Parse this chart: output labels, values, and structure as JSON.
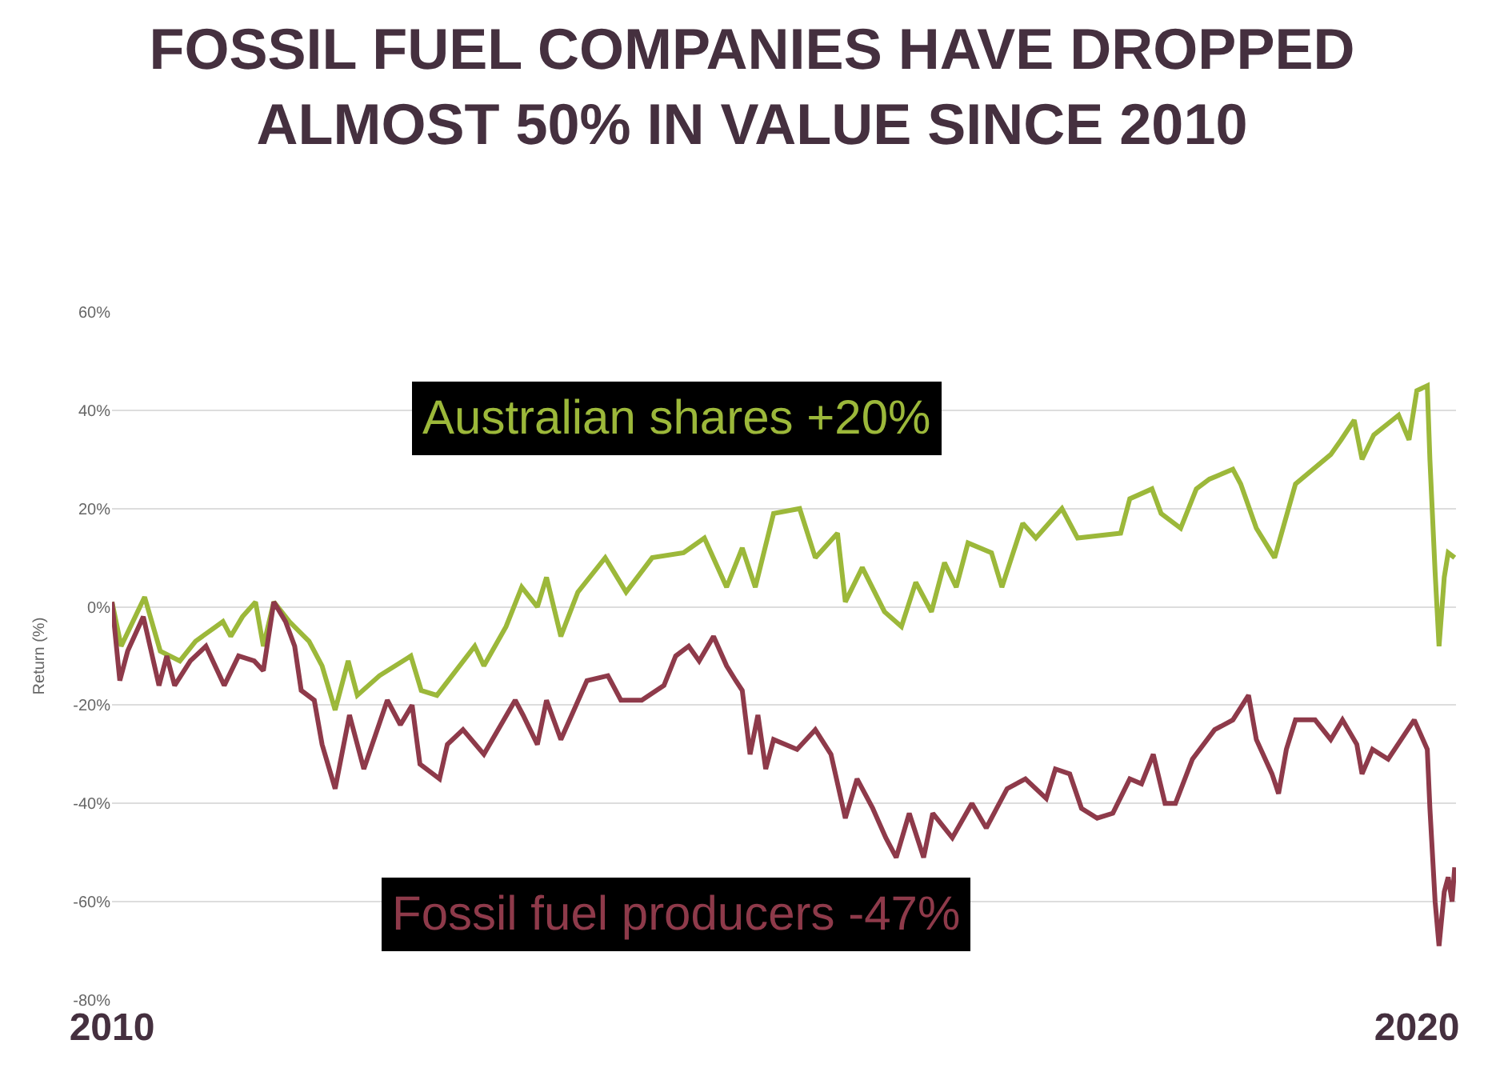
{
  "chart_data": {
    "type": "line",
    "title": "FOSSIL FUEL COMPANIES HAVE DROPPED\nALMOST 50% IN VALUE SINCE 2010",
    "ylabel": "Return (%)",
    "xlim": [
      2010,
      2020.3
    ],
    "xticks": [
      2010,
      2020
    ],
    "ylim": [
      -80,
      60
    ],
    "yticks": [
      {
        "value": 60,
        "label": "60%"
      },
      {
        "value": 40,
        "label": "40%"
      },
      {
        "value": 20,
        "label": "20%"
      },
      {
        "value": 0,
        "label": "0%"
      },
      {
        "value": -20,
        "label": "-20%"
      },
      {
        "value": -40,
        "label": "-40%"
      },
      {
        "value": -60,
        "label": "-60%"
      },
      {
        "value": -80,
        "label": "-80%"
      }
    ],
    "grid": "y",
    "legend": false,
    "series": [
      {
        "name": "Australian shares +20%",
        "color": "#9cb83a",
        "x": [
          2010,
          2010.07,
          2010.25,
          2010.37,
          2010.52,
          2010.64,
          2010.85,
          2010.91,
          2011.0,
          2011.1,
          2011.16,
          2011.24,
          2011.36,
          2011.51,
          2011.61,
          2011.71,
          2011.81,
          2011.88,
          2012.05,
          2012.29,
          2012.37,
          2012.49,
          2012.78,
          2012.85,
          2013.02,
          2013.14,
          2013.26,
          2013.33,
          2013.44,
          2013.57,
          2013.78,
          2013.94,
          2014.14,
          2014.38,
          2014.54,
          2014.71,
          2014.83,
          2014.93,
          2015.07,
          2015.27,
          2015.39,
          2015.56,
          2015.62,
          2015.75,
          2015.92,
          2016.05,
          2016.16,
          2016.28,
          2016.38,
          2016.47,
          2016.56,
          2016.74,
          2016.82,
          2016.98,
          2017.08,
          2017.28,
          2017.4,
          2017.73,
          2017.8,
          2017.97,
          2018.04,
          2018.19,
          2018.31,
          2018.41,
          2018.59,
          2018.65,
          2018.77,
          2018.91,
          2019.07,
          2019.34,
          2019.42,
          2019.52,
          2019.58,
          2019.67,
          2019.86,
          2019.94,
          2020.0,
          2020.08,
          2020.1,
          2020.14,
          2020.17,
          2020.21,
          2020.24,
          2020.29
        ],
        "values": [
          1,
          -8,
          2,
          -9,
          -11,
          -7,
          -3,
          -6,
          -2,
          1,
          -8,
          1,
          -3,
          -7,
          -12,
          -21,
          -11,
          -18,
          -14,
          -10,
          -17,
          -18,
          -8,
          -12,
          -4,
          4,
          0,
          6,
          -6,
          3,
          10,
          3,
          10,
          11,
          14,
          4,
          12,
          4,
          19,
          20,
          10,
          15,
          1,
          8,
          -1,
          -4,
          5,
          -1,
          9,
          4,
          13,
          11,
          4,
          17,
          14,
          20,
          14,
          15,
          22,
          24,
          19,
          16,
          24,
          26,
          28,
          25,
          16,
          10,
          25,
          31,
          34,
          38,
          30,
          35,
          39,
          34,
          44,
          45,
          30,
          7,
          -8,
          6,
          11,
          10
        ]
      },
      {
        "name": "Fossil fuel producers -47%",
        "color": "#8e3a4a",
        "x": [
          2010,
          2010.06,
          2010.12,
          2010.24,
          2010.36,
          2010.42,
          2010.48,
          2010.6,
          2010.72,
          2010.86,
          2010.97,
          2011.09,
          2011.16,
          2011.24,
          2011.33,
          2011.4,
          2011.45,
          2011.55,
          2011.61,
          2011.71,
          2011.82,
          2011.93,
          2012.11,
          2012.21,
          2012.3,
          2012.36,
          2012.51,
          2012.57,
          2012.69,
          2012.85,
          2013.09,
          2013.15,
          2013.26,
          2013.33,
          2013.44,
          2013.64,
          2013.8,
          2013.9,
          2014.06,
          2014.23,
          2014.32,
          2014.42,
          2014.5,
          2014.61,
          2014.71,
          2014.78,
          2014.83,
          2014.89,
          2014.95,
          2015.01,
          2015.07,
          2015.25,
          2015.39,
          2015.51,
          2015.62,
          2015.71,
          2015.83,
          2015.93,
          2016.01,
          2016.11,
          2016.22,
          2016.29,
          2016.44,
          2016.59,
          2016.7,
          2016.78,
          2016.86,
          2017.0,
          2017.16,
          2017.23,
          2017.34,
          2017.43,
          2017.55,
          2017.67,
          2017.8,
          2017.89,
          2017.98,
          2018.07,
          2018.15,
          2018.28,
          2018.45,
          2018.59,
          2018.71,
          2018.77,
          2018.89,
          2018.94,
          2019.0,
          2019.07,
          2019.22,
          2019.34,
          2019.43,
          2019.54,
          2019.58,
          2019.66,
          2019.78,
          2019.88,
          2019.98,
          2020.08,
          2020.1,
          2020.14,
          2020.17,
          2020.21,
          2020.24,
          2020.27,
          2020.29
        ],
        "values": [
          1,
          -15,
          -9,
          -2,
          -16,
          -10,
          -16,
          -11,
          -8,
          -16,
          -10,
          -11,
          -13,
          1,
          -3,
          -8,
          -17,
          -19,
          -28,
          -37,
          -22,
          -33,
          -19,
          -24,
          -20,
          -32,
          -35,
          -28,
          -25,
          -30,
          -19,
          -22,
          -28,
          -19,
          -27,
          -15,
          -14,
          -19,
          -19,
          -16,
          -10,
          -8,
          -11,
          -6,
          -12,
          -15,
          -17,
          -30,
          -22,
          -33,
          -27,
          -29,
          -25,
          -30,
          -43,
          -35,
          -41,
          -47,
          -51,
          -42,
          -51,
          -42,
          -47,
          -40,
          -45,
          -41,
          -37,
          -35,
          -39,
          -33,
          -34,
          -41,
          -43,
          -42,
          -35,
          -36,
          -30,
          -40,
          -40,
          -31,
          -25,
          -23,
          -18,
          -27,
          -34,
          -38,
          -29,
          -23,
          -23,
          -27,
          -23,
          -28,
          -34,
          -29,
          -31,
          -27,
          -23,
          -29,
          -41,
          -60,
          -69,
          -58,
          -55,
          -60,
          -53
        ]
      }
    ]
  }
}
